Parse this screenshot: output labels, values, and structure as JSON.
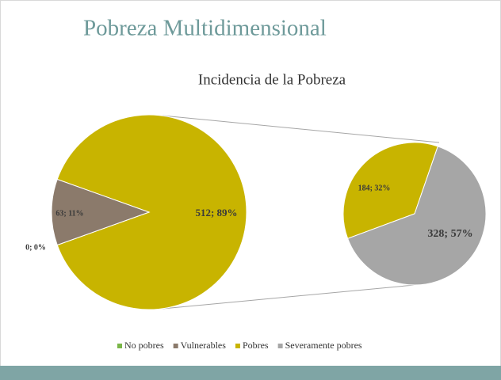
{
  "header": {
    "title": "Pobreza Multidimensional"
  },
  "chart_data": {
    "type": "pie_of_pie",
    "title": "Incidencia de la Pobreza",
    "main": {
      "categories": [
        "No pobres",
        "Vulnerables",
        "Pobres"
      ],
      "values": [
        0,
        63,
        512
      ],
      "value_labels": [
        "0; 0%",
        "63; 11%",
        "512; 89%"
      ],
      "colors": [
        "#7ab648",
        "#8b7a6b",
        "#c8b400"
      ]
    },
    "secondary": {
      "categories": [
        "Pobres",
        "Severamente pobres"
      ],
      "values": [
        184,
        328
      ],
      "value_labels": [
        "184; 32%",
        "328; 57%"
      ],
      "colors": [
        "#c8b400",
        "#a6a6a6"
      ]
    },
    "legend": {
      "position": "bottom",
      "entries": [
        {
          "name": "No pobres",
          "color": "#7ab648"
        },
        {
          "name": "Vulnerables",
          "color": "#8b7a6b"
        },
        {
          "name": "Pobres",
          "color": "#c8b400"
        },
        {
          "name": "Severamente pobres",
          "color": "#a6a6a6"
        }
      ]
    }
  }
}
